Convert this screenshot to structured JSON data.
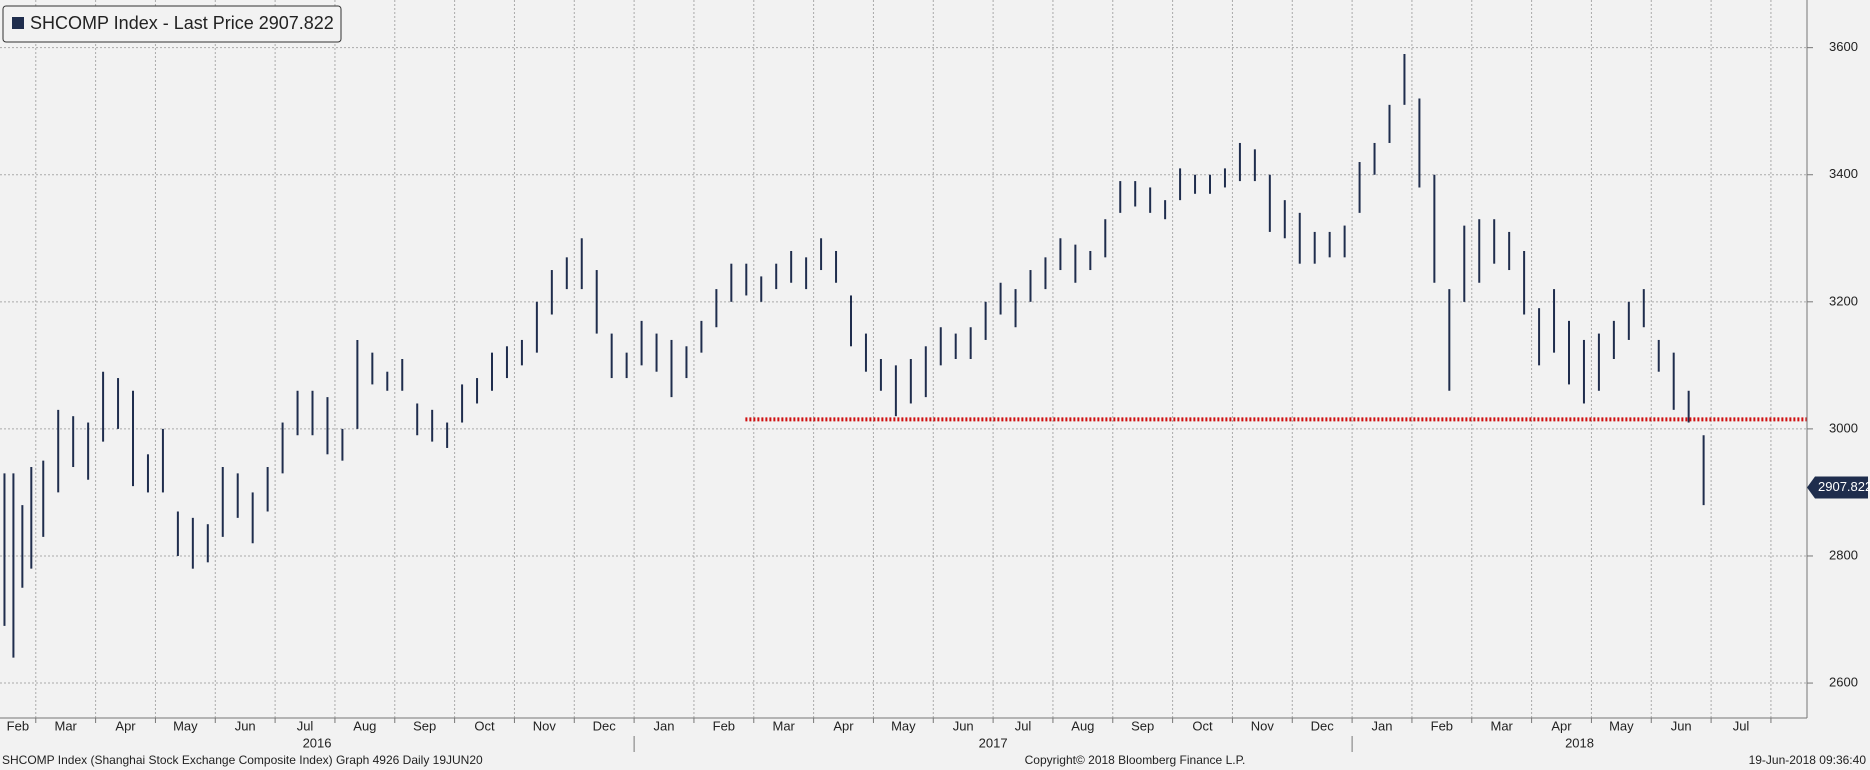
{
  "chart_data": {
    "type": "ohlc",
    "series": [
      {
        "name": "SHCOMP Index - Last Price 2907.822",
        "color": "#1f2d4d",
        "high": [
          [
            2930,
            2930,
            2880,
            2940
          ],
          [
            2950,
            3030,
            3020,
            3010
          ],
          [
            3090,
            3080,
            3060,
            2960
          ],
          [
            3000,
            2870,
            2860,
            2850
          ],
          [
            2940,
            2930,
            2900,
            2940
          ],
          [
            3010,
            3060,
            3060,
            3050
          ],
          [
            3000,
            3140,
            3120,
            3090
          ],
          [
            3110,
            3040,
            3030,
            3010
          ],
          [
            3070,
            3080,
            3120,
            3130
          ],
          [
            3140,
            3200,
            3250,
            3270
          ],
          [
            3300,
            3250,
            3150,
            3120
          ],
          [
            3170,
            3150,
            3140,
            3130
          ],
          [
            3170,
            3220,
            3260,
            3260
          ],
          [
            3240,
            3260,
            3280,
            3270
          ],
          [
            3300,
            3280,
            3210,
            3150
          ],
          [
            3110,
            3100,
            3110,
            3130
          ],
          [
            3160,
            3150,
            3160,
            3200
          ],
          [
            3230,
            3220,
            3250,
            3270
          ],
          [
            3300,
            3290,
            3280,
            3330
          ],
          [
            3390,
            3390,
            3380,
            3360
          ],
          [
            3410,
            3400,
            3400,
            3410
          ],
          [
            3450,
            3440,
            3400,
            3360
          ],
          [
            3340,
            3310,
            3310,
            3320
          ],
          [
            3420,
            3450,
            3510,
            3590
          ],
          [
            3520,
            3400,
            3220,
            3320
          ],
          [
            3330,
            3330,
            3310,
            3280
          ],
          [
            3190,
            3220,
            3170,
            3140
          ],
          [
            3150,
            3170,
            3200,
            3220
          ],
          [
            3140,
            3120,
            3060,
            2990
          ],
          []
        ],
        "low": [
          [
            2690,
            2640,
            2750,
            2780
          ],
          [
            2830,
            2900,
            2940,
            2920
          ],
          [
            2980,
            3000,
            2910,
            2900
          ],
          [
            2900,
            2800,
            2780,
            2790
          ],
          [
            2830,
            2860,
            2820,
            2870
          ],
          [
            2930,
            2990,
            2990,
            2960
          ],
          [
            2950,
            3000,
            3070,
            3060
          ],
          [
            3060,
            2990,
            2980,
            2970
          ],
          [
            3010,
            3040,
            3060,
            3080
          ],
          [
            3100,
            3120,
            3180,
            3220
          ],
          [
            3220,
            3150,
            3080,
            3080
          ],
          [
            3100,
            3090,
            3050,
            3080
          ],
          [
            3120,
            3160,
            3200,
            3210
          ],
          [
            3200,
            3220,
            3230,
            3220
          ],
          [
            3250,
            3230,
            3130,
            3090
          ],
          [
            3060,
            3020,
            3040,
            3050
          ],
          [
            3100,
            3110,
            3110,
            3140
          ],
          [
            3180,
            3160,
            3200,
            3220
          ],
          [
            3250,
            3230,
            3250,
            3270
          ],
          [
            3340,
            3350,
            3340,
            3330
          ],
          [
            3360,
            3370,
            3370,
            3380
          ],
          [
            3390,
            3390,
            3310,
            3300
          ],
          [
            3260,
            3260,
            3270,
            3270
          ],
          [
            3340,
            3400,
            3450,
            3510
          ],
          [
            3380,
            3230,
            3060,
            3200
          ],
          [
            3230,
            3260,
            3250,
            3180
          ],
          [
            3100,
            3120,
            3070,
            3040
          ],
          [
            3060,
            3110,
            3140,
            3160
          ],
          [
            3090,
            3030,
            3010,
            2880
          ],
          []
        ]
      }
    ],
    "categories": [
      "Feb",
      "Mar",
      "Apr",
      "May",
      "Jun",
      "Jul",
      "Aug",
      "Sep",
      "Oct",
      "Nov",
      "Dec",
      "Jan",
      "Feb",
      "Mar",
      "Apr",
      "May",
      "Jun",
      "Jul",
      "Aug",
      "Sep",
      "Oct",
      "Nov",
      "Dec",
      "Jan",
      "Feb",
      "Mar",
      "Apr",
      "May",
      "Jun",
      "Jul"
    ],
    "year_labels": [
      "2016",
      "2017",
      "2018"
    ],
    "ylim": [
      2545,
      3675
    ],
    "yticks": [
      2600,
      2800,
      3000,
      3200,
      3400,
      3600
    ],
    "grid": true,
    "last_price": 2907.822,
    "reference_line": {
      "value": 3015,
      "color": "#d01010"
    },
    "footer_left": "SHCOMP Index (Shanghai Stock Exchange Composite Index) Graph 4926  Daily 19JUN20",
    "footer_center": "Copyright© 2018 Bloomberg Finance L.P.",
    "footer_right": "19-Jun-2018 09:36:40"
  }
}
